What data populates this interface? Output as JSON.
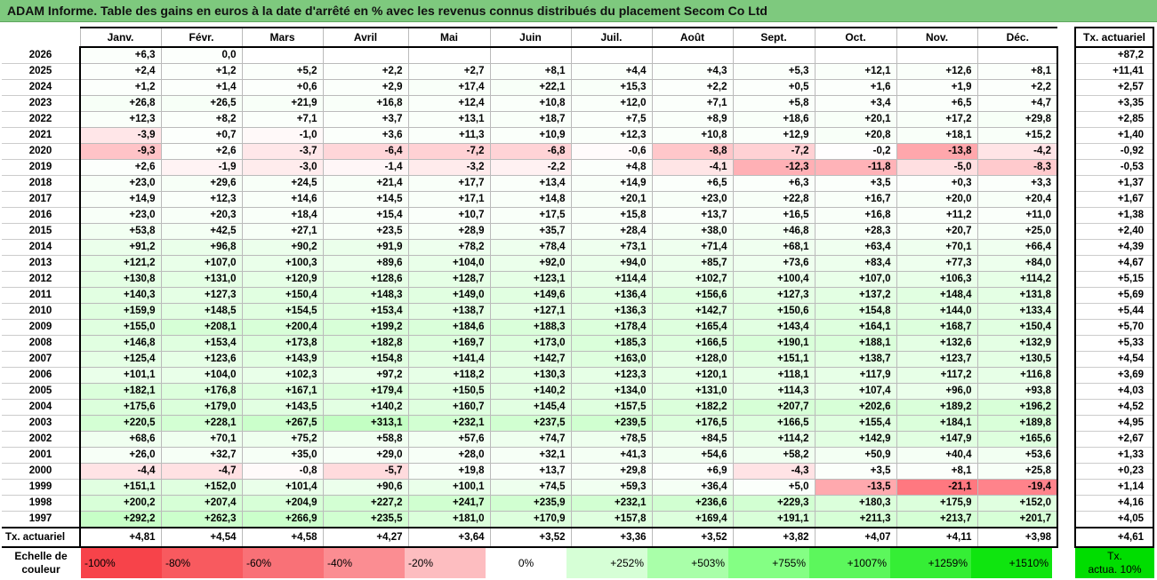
{
  "title": "ADAM Informe. Table des gains en euros à la date d'arrêté en % avec les revenus connus distribués du placement Secom Co Ltd",
  "months": [
    "Janv.",
    "Févr.",
    "Mars",
    "Avril",
    "Mai",
    "Juin",
    "Juil.",
    "Août",
    "Sept.",
    "Oct.",
    "Nov.",
    "Déc."
  ],
  "act_header": "Tx. actuariel",
  "rows": [
    {
      "year": "2026",
      "vals": [
        "+6,3",
        "0,0",
        "",
        "",
        "",
        "",
        "",
        "",
        "",
        "",
        "",
        ""
      ],
      "act": "+87,2"
    },
    {
      "year": "2025",
      "vals": [
        "+2,4",
        "+1,2",
        "+5,2",
        "+2,2",
        "+2,7",
        "+8,1",
        "+4,4",
        "+4,3",
        "+5,3",
        "+12,1",
        "+12,6",
        "+8,1"
      ],
      "act": "+11,41"
    },
    {
      "year": "2024",
      "vals": [
        "+1,2",
        "+1,4",
        "+0,6",
        "+2,9",
        "+17,4",
        "+22,1",
        "+15,3",
        "+2,2",
        "+0,5",
        "+1,6",
        "+1,9",
        "+2,2"
      ],
      "act": "+2,57"
    },
    {
      "year": "2023",
      "vals": [
        "+26,8",
        "+26,5",
        "+21,9",
        "+16,8",
        "+12,4",
        "+10,8",
        "+12,0",
        "+7,1",
        "+5,8",
        "+3,4",
        "+6,5",
        "+4,7"
      ],
      "act": "+3,35"
    },
    {
      "year": "2022",
      "vals": [
        "+12,3",
        "+8,2",
        "+7,1",
        "+3,7",
        "+13,1",
        "+18,7",
        "+7,5",
        "+8,9",
        "+18,6",
        "+20,1",
        "+17,2",
        "+29,8"
      ],
      "act": "+2,85"
    },
    {
      "year": "2021",
      "vals": [
        "-3,9",
        "+0,7",
        "-1,0",
        "+3,6",
        "+11,3",
        "+10,9",
        "+12,3",
        "+10,8",
        "+12,9",
        "+20,8",
        "+18,1",
        "+15,2"
      ],
      "act": "+1,40"
    },
    {
      "year": "2020",
      "vals": [
        "-9,3",
        "+2,6",
        "-3,7",
        "-6,4",
        "-7,2",
        "-6,8",
        "-0,6",
        "-8,8",
        "-7,2",
        "-0,2",
        "-13,8",
        "-4,2"
      ],
      "act": "-0,92"
    },
    {
      "year": "2019",
      "vals": [
        "+2,6",
        "-1,9",
        "-3,0",
        "-1,4",
        "-3,2",
        "-2,2",
        "+4,8",
        "-4,1",
        "-12,3",
        "-11,8",
        "-5,0",
        "-8,3"
      ],
      "act": "-0,53"
    },
    {
      "year": "2018",
      "vals": [
        "+23,0",
        "+29,6",
        "+24,5",
        "+21,4",
        "+17,7",
        "+13,4",
        "+14,9",
        "+6,5",
        "+6,3",
        "+3,5",
        "+0,3",
        "+3,3"
      ],
      "act": "+1,37"
    },
    {
      "year": "2017",
      "vals": [
        "+14,9",
        "+12,3",
        "+14,6",
        "+14,5",
        "+17,1",
        "+14,8",
        "+20,1",
        "+23,0",
        "+22,8",
        "+16,7",
        "+20,0",
        "+20,4"
      ],
      "act": "+1,67"
    },
    {
      "year": "2016",
      "vals": [
        "+23,0",
        "+20,3",
        "+18,4",
        "+15,4",
        "+10,7",
        "+17,5",
        "+15,8",
        "+13,7",
        "+16,5",
        "+16,8",
        "+11,2",
        "+11,0"
      ],
      "act": "+1,38"
    },
    {
      "year": "2015",
      "vals": [
        "+53,8",
        "+42,5",
        "+27,1",
        "+23,5",
        "+28,9",
        "+35,7",
        "+28,4",
        "+38,0",
        "+46,8",
        "+28,3",
        "+20,7",
        "+25,0"
      ],
      "act": "+2,40"
    },
    {
      "year": "2014",
      "vals": [
        "+91,2",
        "+96,8",
        "+90,2",
        "+91,9",
        "+78,2",
        "+78,4",
        "+73,1",
        "+71,4",
        "+68,1",
        "+63,4",
        "+70,1",
        "+66,4"
      ],
      "act": "+4,39"
    },
    {
      "year": "2013",
      "vals": [
        "+121,2",
        "+107,0",
        "+100,3",
        "+89,6",
        "+104,0",
        "+92,0",
        "+94,0",
        "+85,7",
        "+73,6",
        "+83,4",
        "+77,3",
        "+84,0"
      ],
      "act": "+4,67"
    },
    {
      "year": "2012",
      "vals": [
        "+130,8",
        "+131,0",
        "+120,9",
        "+128,6",
        "+128,7",
        "+123,1",
        "+114,4",
        "+102,7",
        "+100,4",
        "+107,0",
        "+106,3",
        "+114,2"
      ],
      "act": "+5,15"
    },
    {
      "year": "2011",
      "vals": [
        "+140,3",
        "+127,3",
        "+150,4",
        "+148,3",
        "+149,0",
        "+149,6",
        "+136,4",
        "+156,6",
        "+127,3",
        "+137,2",
        "+148,4",
        "+131,8"
      ],
      "act": "+5,69"
    },
    {
      "year": "2010",
      "vals": [
        "+159,9",
        "+148,5",
        "+154,5",
        "+153,4",
        "+138,7",
        "+127,1",
        "+136,3",
        "+142,7",
        "+150,6",
        "+154,8",
        "+144,0",
        "+133,4"
      ],
      "act": "+5,44"
    },
    {
      "year": "2009",
      "vals": [
        "+155,0",
        "+208,1",
        "+200,4",
        "+199,2",
        "+184,6",
        "+188,3",
        "+178,4",
        "+165,4",
        "+143,4",
        "+164,1",
        "+168,7",
        "+150,4"
      ],
      "act": "+5,70"
    },
    {
      "year": "2008",
      "vals": [
        "+146,8",
        "+153,4",
        "+173,8",
        "+182,8",
        "+169,7",
        "+173,0",
        "+185,3",
        "+166,5",
        "+190,1",
        "+188,1",
        "+132,6",
        "+132,9"
      ],
      "act": "+5,33"
    },
    {
      "year": "2007",
      "vals": [
        "+125,4",
        "+123,6",
        "+143,9",
        "+154,8",
        "+141,4",
        "+142,7",
        "+163,0",
        "+128,0",
        "+151,1",
        "+138,7",
        "+123,7",
        "+130,5"
      ],
      "act": "+4,54"
    },
    {
      "year": "2006",
      "vals": [
        "+101,1",
        "+104,0",
        "+102,3",
        "+97,2",
        "+118,2",
        "+130,3",
        "+123,3",
        "+120,1",
        "+118,1",
        "+117,9",
        "+117,2",
        "+116,8"
      ],
      "act": "+3,69"
    },
    {
      "year": "2005",
      "vals": [
        "+182,1",
        "+176,8",
        "+167,1",
        "+179,4",
        "+150,5",
        "+140,2",
        "+134,0",
        "+131,0",
        "+114,3",
        "+107,4",
        "+96,0",
        "+93,8"
      ],
      "act": "+4,03"
    },
    {
      "year": "2004",
      "vals": [
        "+175,6",
        "+179,0",
        "+143,5",
        "+140,2",
        "+160,7",
        "+145,4",
        "+157,5",
        "+182,2",
        "+207,7",
        "+202,6",
        "+189,2",
        "+196,2"
      ],
      "act": "+4,52"
    },
    {
      "year": "2003",
      "vals": [
        "+220,5",
        "+228,1",
        "+267,5",
        "+313,1",
        "+232,1",
        "+237,5",
        "+239,5",
        "+176,5",
        "+166,5",
        "+155,4",
        "+184,1",
        "+189,8"
      ],
      "act": "+4,95"
    },
    {
      "year": "2002",
      "vals": [
        "+68,6",
        "+70,1",
        "+75,2",
        "+58,8",
        "+57,6",
        "+74,7",
        "+78,5",
        "+84,5",
        "+114,2",
        "+142,9",
        "+147,9",
        "+165,6"
      ],
      "act": "+2,67"
    },
    {
      "year": "2001",
      "vals": [
        "+26,0",
        "+32,7",
        "+35,0",
        "+29,0",
        "+28,0",
        "+32,1",
        "+41,3",
        "+54,6",
        "+58,2",
        "+50,9",
        "+40,4",
        "+53,6"
      ],
      "act": "+1,33"
    },
    {
      "year": "2000",
      "vals": [
        "-4,4",
        "-4,7",
        "-0,8",
        "-5,7",
        "+19,8",
        "+13,7",
        "+29,8",
        "+6,9",
        "-4,3",
        "+3,5",
        "+8,1",
        "+25,8"
      ],
      "act": "+0,23"
    },
    {
      "year": "1999",
      "vals": [
        "+151,1",
        "+152,0",
        "+101,4",
        "+90,6",
        "+100,1",
        "+74,5",
        "+59,3",
        "+36,4",
        "+5,0",
        "-13,5",
        "-21,1",
        "-19,4"
      ],
      "act": "+1,14"
    },
    {
      "year": "1998",
      "vals": [
        "+200,2",
        "+207,4",
        "+204,9",
        "+227,2",
        "+241,7",
        "+235,9",
        "+232,1",
        "+236,6",
        "+229,3",
        "+180,3",
        "+175,9",
        "+152,0"
      ],
      "act": "+4,16"
    },
    {
      "year": "1997",
      "vals": [
        "+292,2",
        "+262,3",
        "+266,9",
        "+235,5",
        "+181,0",
        "+170,9",
        "+157,8",
        "+169,4",
        "+191,1",
        "+211,3",
        "+213,7",
        "+201,7"
      ],
      "act": "+4,05"
    }
  ],
  "footer": {
    "label": "Tx. actuariel",
    "vals": [
      "+4,81",
      "+4,54",
      "+4,58",
      "+4,27",
      "+3,64",
      "+3,52",
      "+3,36",
      "+3,52",
      "+3,82",
      "+4,07",
      "+4,11",
      "+3,98"
    ],
    "act": "+4,61"
  },
  "scale": {
    "label_line1": "Echelle de",
    "label_line2": "couleur",
    "steps": [
      {
        "text": "-100%",
        "color": "#f7434a"
      },
      {
        "text": "-80%",
        "color": "#f85a5f"
      },
      {
        "text": "-60%",
        "color": "#f97177"
      },
      {
        "text": "-40%",
        "color": "#fb8d92"
      },
      {
        "text": "-20%",
        "color": "#fdbdc0"
      },
      {
        "text": "0%",
        "color": "#ffffff"
      },
      {
        "text": "+252%",
        "color": "#d6ffd6"
      },
      {
        "text": "+503%",
        "color": "#a9ffa9"
      },
      {
        "text": "+755%",
        "color": "#84ff84"
      },
      {
        "text": "+1007%",
        "color": "#5cf75c"
      },
      {
        "text": "+1259%",
        "color": "#35ee35"
      },
      {
        "text": "+1510%",
        "color": "#0fe50f"
      }
    ],
    "tx_line1": "Tx.",
    "tx_line2": "actua. 10%",
    "tx_color": "#00dd00"
  }
}
